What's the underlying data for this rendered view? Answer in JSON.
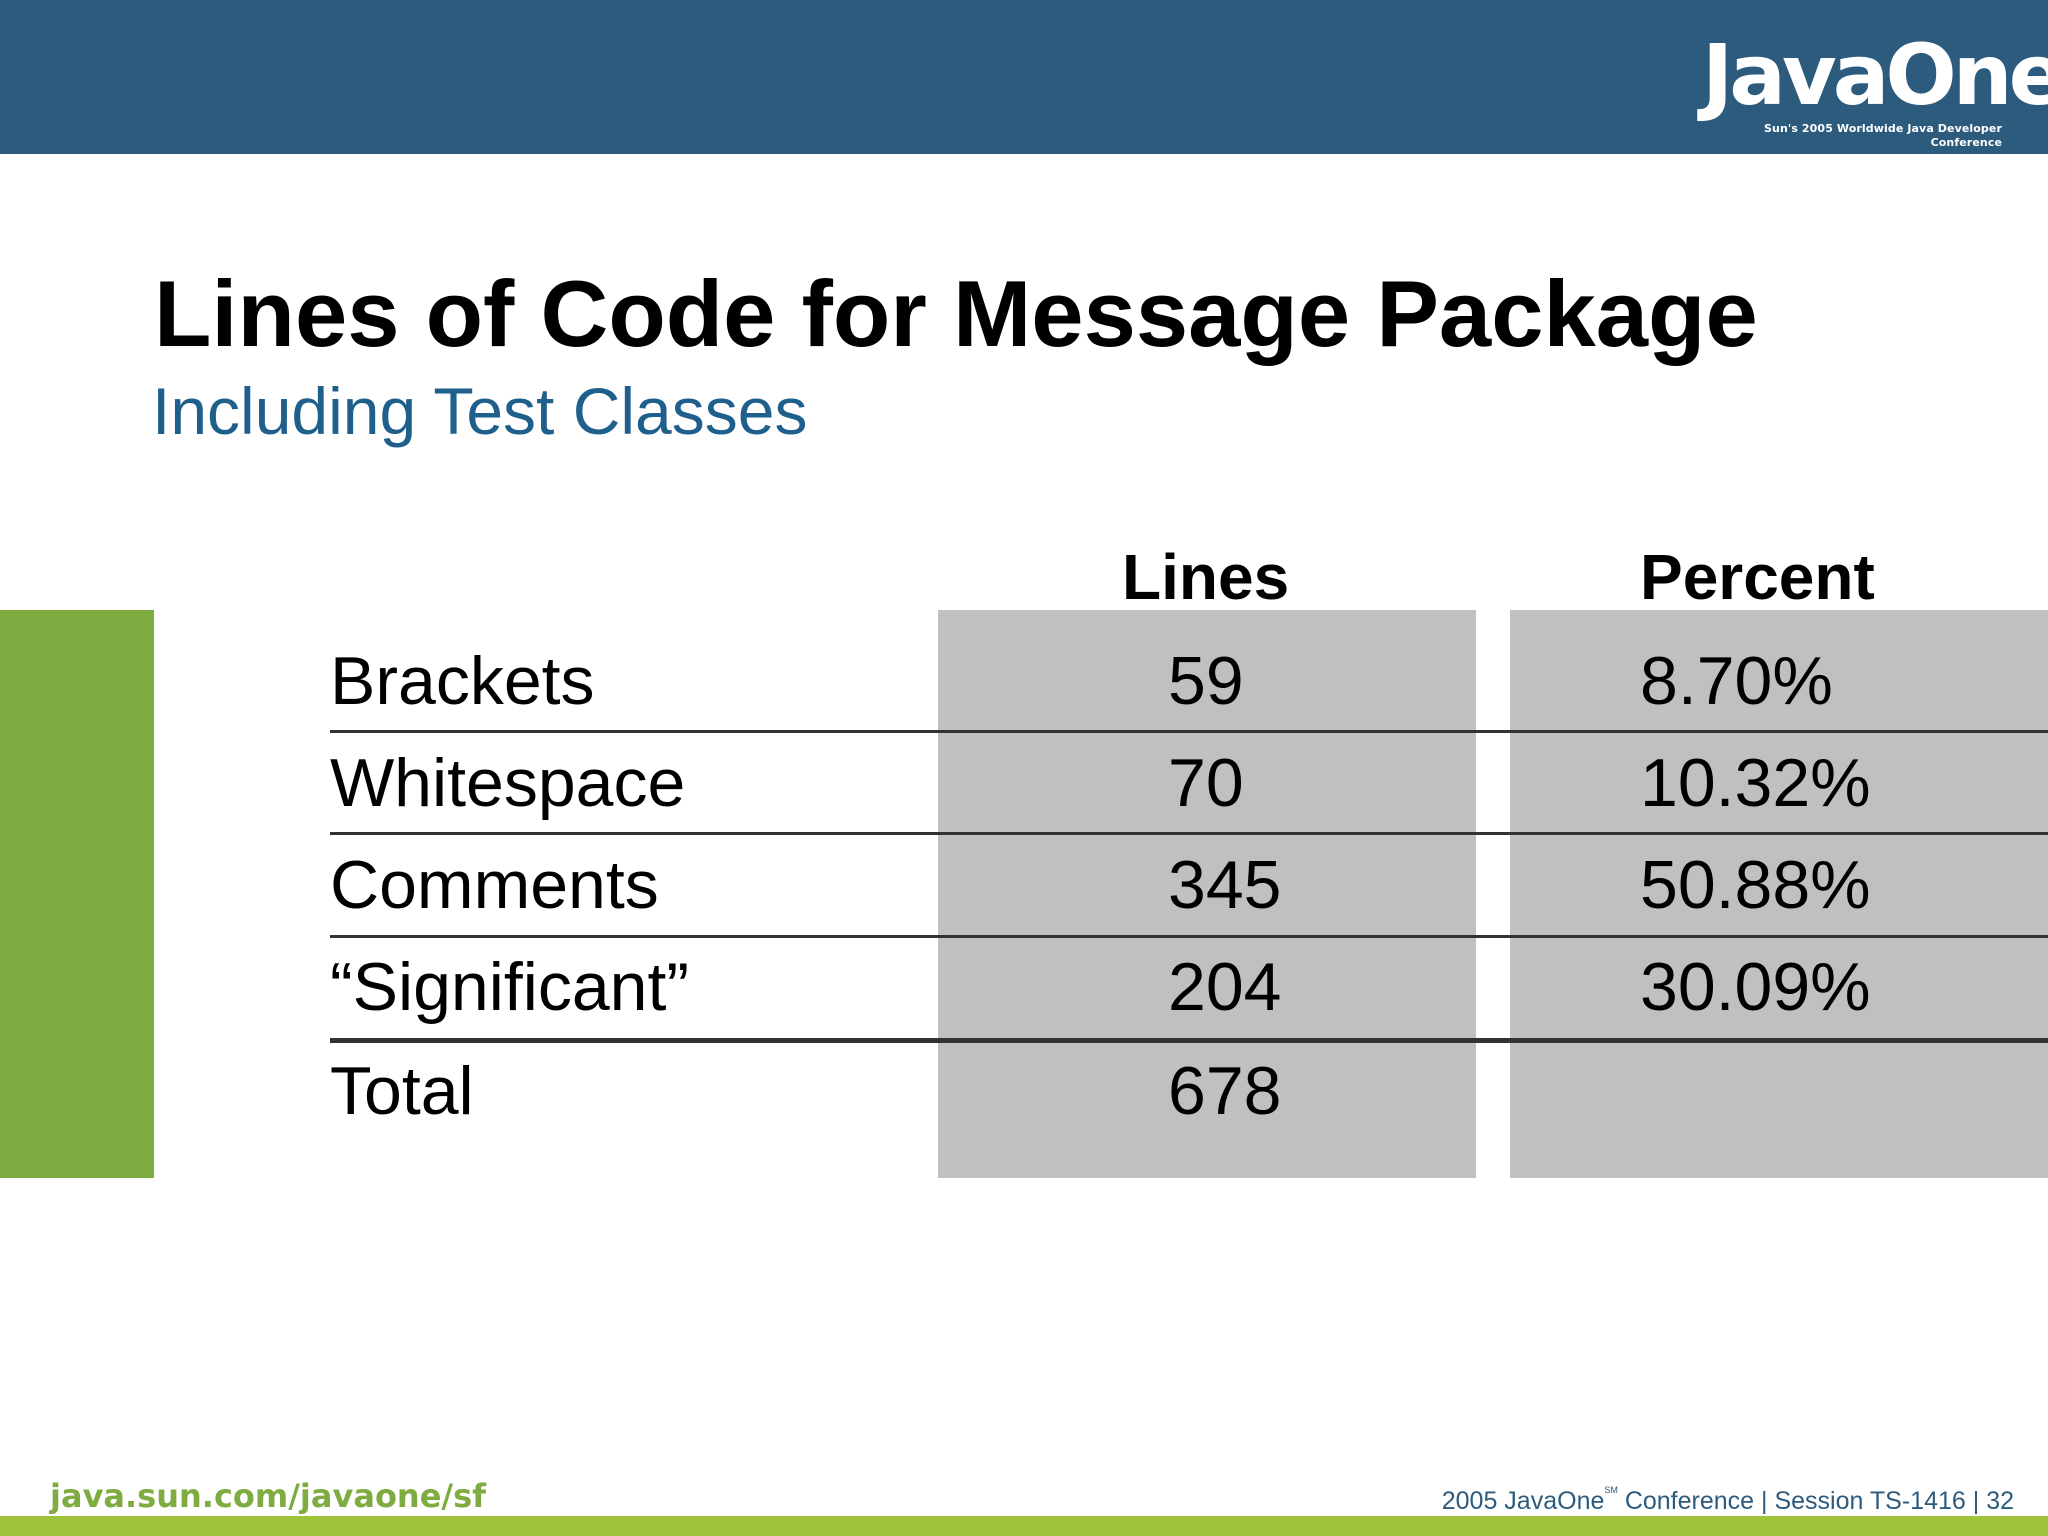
{
  "header": {
    "logo_text": "JavaOne",
    "logo_tagline": "Sun's 2005 Worldwide Java Developer Conference",
    "band_color": "#2d5b7e"
  },
  "slide": {
    "title": "Lines of Code for Message Package",
    "subtitle": "Including Test Classes"
  },
  "table": {
    "columns": [
      "Lines",
      "Percent"
    ],
    "rows": [
      {
        "label": "Brackets",
        "lines": "59",
        "percent": "8.70%"
      },
      {
        "label": "Whitespace",
        "lines": "70",
        "percent": "10.32%"
      },
      {
        "label": "Comments",
        "lines": "345",
        "percent": "50.88%"
      },
      {
        "label": "“Significant”",
        "lines": "204",
        "percent": "30.09%"
      },
      {
        "label": "Total",
        "lines": "678",
        "percent": ""
      }
    ],
    "shade_color": "#c1bfc2",
    "accent_color": "#7fac40"
  },
  "footer": {
    "url": "java.sun.com/javaone/sf",
    "conference_prefix": "2005 JavaOne",
    "service_mark": "SM",
    "conference_suffix": " Conference",
    "separator": "  |  ",
    "session": "Session TS-1416",
    "page_number": "32"
  }
}
